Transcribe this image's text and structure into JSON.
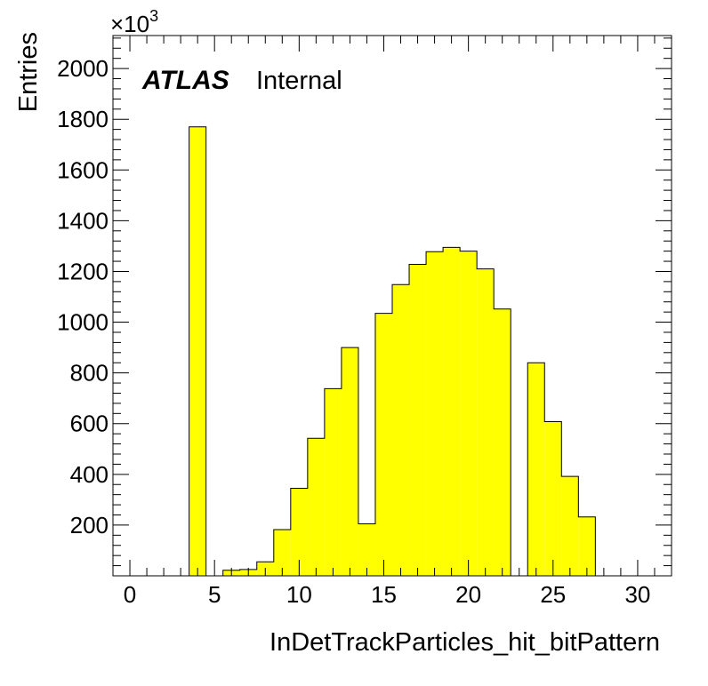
{
  "chart_data": {
    "type": "bar",
    "xlabel": "InDetTrackParticles_hit_bitPattern",
    "ylabel": "Entries",
    "y_multiplier": "×10",
    "y_multiplier_exp": "3",
    "label_atlas": "ATLAS",
    "label_status": "Internal",
    "xlim": [
      -1,
      32
    ],
    "ylim": [
      0,
      2130
    ],
    "x_ticks": [
      0,
      5,
      10,
      15,
      20,
      25,
      30
    ],
    "y_ticks": [
      200,
      400,
      600,
      800,
      1000,
      1200,
      1400,
      1600,
      1800,
      2000
    ],
    "bin_width": 1,
    "fill_color": "#ffff00",
    "line_color": "#000000",
    "bins": [
      {
        "x": 4,
        "value": 1770
      },
      {
        "x": 6,
        "value": 22
      },
      {
        "x": 7,
        "value": 25
      },
      {
        "x": 8,
        "value": 55
      },
      {
        "x": 9,
        "value": 182
      },
      {
        "x": 10,
        "value": 345
      },
      {
        "x": 11,
        "value": 542
      },
      {
        "x": 12,
        "value": 738
      },
      {
        "x": 13,
        "value": 900
      },
      {
        "x": 14,
        "value": 205
      },
      {
        "x": 15,
        "value": 1035
      },
      {
        "x": 16,
        "value": 1148
      },
      {
        "x": 17,
        "value": 1228
      },
      {
        "x": 18,
        "value": 1278
      },
      {
        "x": 19,
        "value": 1295
      },
      {
        "x": 20,
        "value": 1280
      },
      {
        "x": 21,
        "value": 1210
      },
      {
        "x": 22,
        "value": 1052
      },
      {
        "x": 24,
        "value": 840
      },
      {
        "x": 25,
        "value": 608
      },
      {
        "x": 26,
        "value": 392
      },
      {
        "x": 27,
        "value": 232
      }
    ]
  }
}
